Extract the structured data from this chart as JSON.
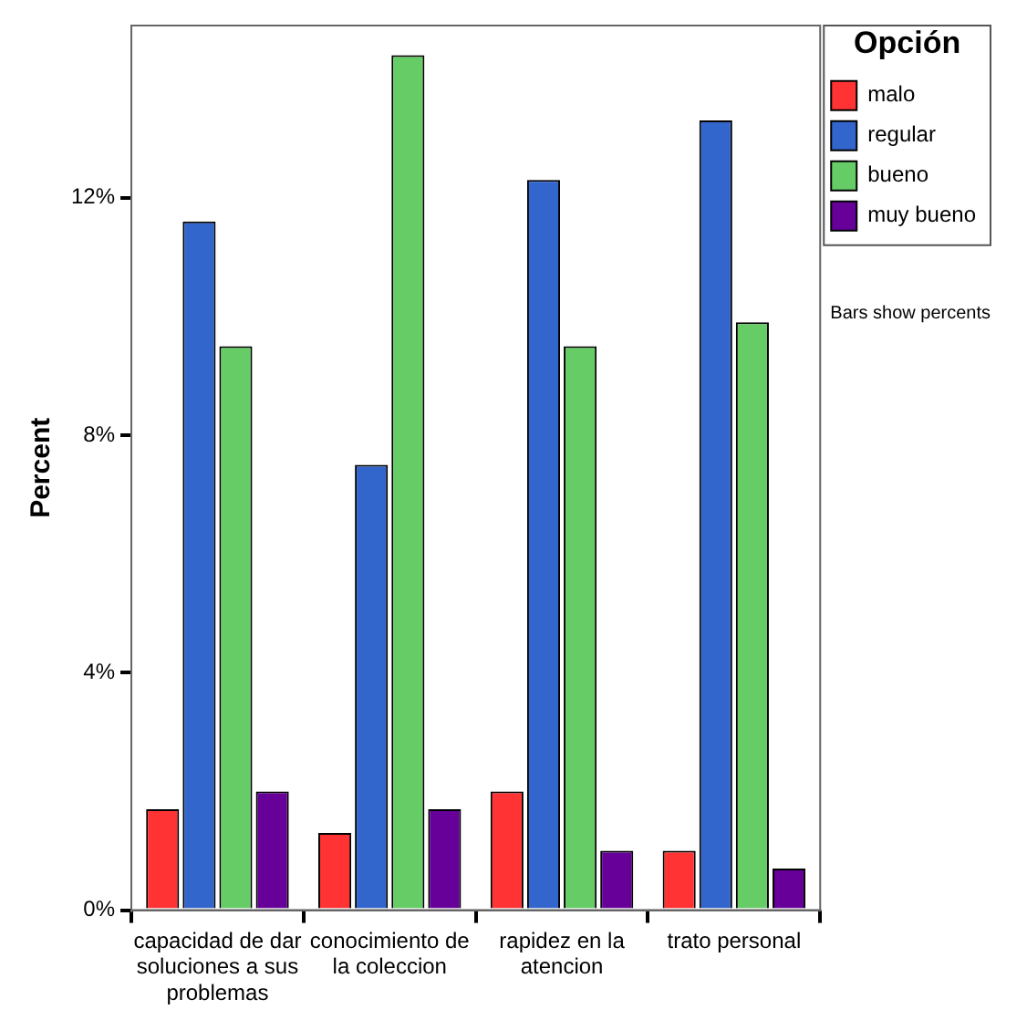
{
  "chart_data": {
    "type": "bar",
    "ylabel": "Percent",
    "legend_title": "Opción",
    "categories": [
      "capacidad de dar soluciones a sus problemas",
      "conocimiento de la coleccion",
      "rapidez en la atencion",
      "trato personal"
    ],
    "series": [
      {
        "name": "malo",
        "color": "#ff3333",
        "values": [
          1.7,
          1.3,
          2.0,
          1.0
        ]
      },
      {
        "name": "regular",
        "color": "#3366cc",
        "values": [
          11.6,
          7.5,
          12.3,
          13.3
        ]
      },
      {
        "name": "bueno",
        "color": "#66cc66",
        "values": [
          9.5,
          14.4,
          9.5,
          9.9
        ]
      },
      {
        "name": "muy bueno",
        "color": "#660099",
        "values": [
          2.0,
          1.7,
          1.0,
          0.7
        ]
      }
    ],
    "ylim": [
      0,
      14.9
    ],
    "yticks": [
      {
        "value": 0,
        "label": "0%"
      },
      {
        "value": 4,
        "label": "4%"
      },
      {
        "value": 8,
        "label": "8%"
      },
      {
        "value": 12,
        "label": "12%"
      }
    ],
    "grid": false,
    "legend": "top right",
    "annotations": [
      "Bars show percents"
    ]
  }
}
